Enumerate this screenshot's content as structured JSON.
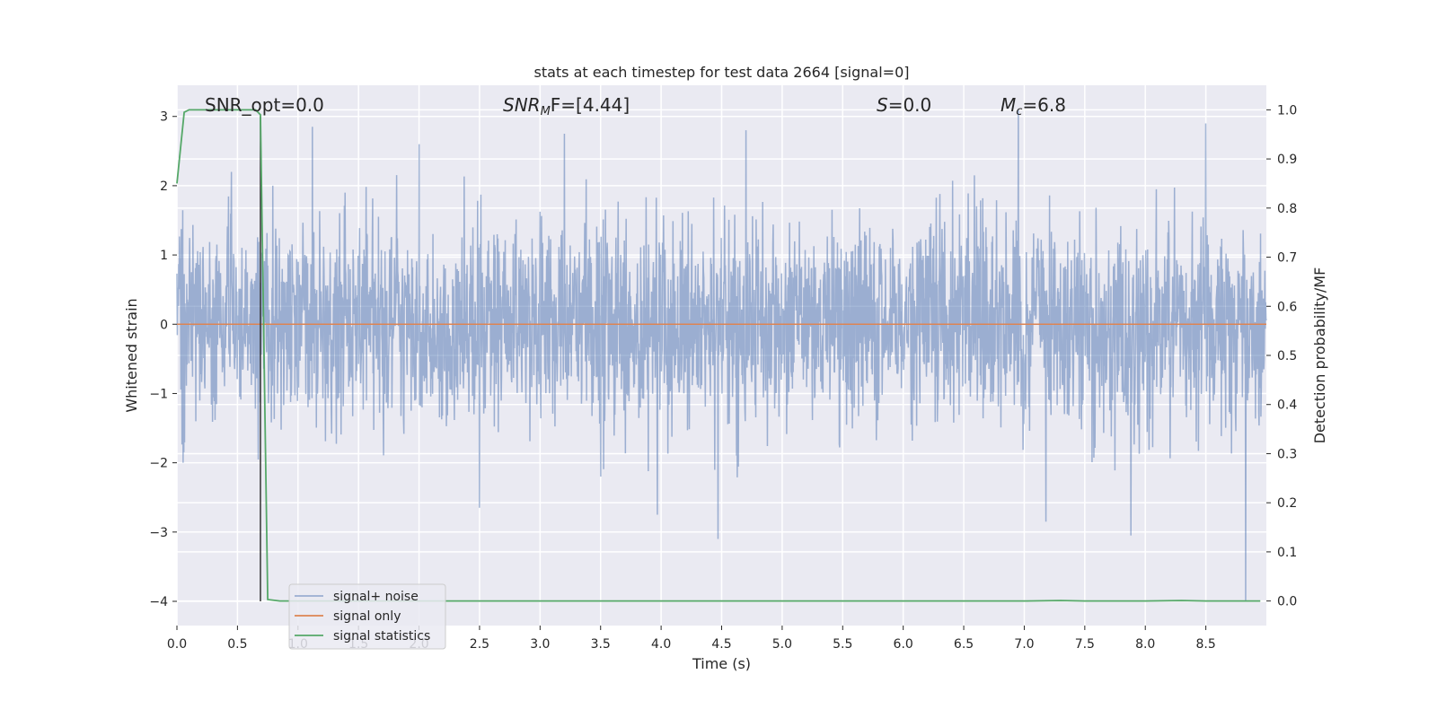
{
  "chart_data": {
    "type": "line",
    "title": "stats at each timestep for test data 2664 [signal=0]",
    "xlabel": "Time (s)",
    "ylabel": "Whitened strain",
    "y2label": "Detection probability/MF",
    "xlim": [
      0.0,
      9.0
    ],
    "ylim": [
      -4.35,
      3.45
    ],
    "y2lim": [
      -0.05,
      1.05
    ],
    "xticks": [
      0.0,
      0.5,
      1.0,
      1.5,
      2.0,
      2.5,
      3.0,
      3.5,
      4.0,
      4.5,
      5.0,
      5.5,
      6.0,
      6.5,
      7.0,
      7.5,
      8.0,
      8.5
    ],
    "xtick_labels": [
      "0.0",
      "0.5",
      "1.0",
      "1.5",
      "2.0",
      "2.5",
      "3.0",
      "3.5",
      "4.0",
      "4.5",
      "5.0",
      "5.5",
      "6.0",
      "6.5",
      "7.0",
      "7.5",
      "8.0",
      "8.5"
    ],
    "yticks": [
      -4,
      -3,
      -2,
      -1,
      0,
      1,
      2,
      3
    ],
    "ytick_labels": [
      "−4",
      "−3",
      "−2",
      "−1",
      "0",
      "1",
      "2",
      "3"
    ],
    "y2ticks": [
      0.0,
      0.1,
      0.2,
      0.3,
      0.4,
      0.5,
      0.6,
      0.7,
      0.8,
      0.9,
      1.0
    ],
    "y2tick_labels": [
      "0.0",
      "0.1",
      "0.2",
      "0.3",
      "0.4",
      "0.5",
      "0.6",
      "0.7",
      "0.8",
      "0.9",
      "1.0"
    ],
    "grid": true,
    "legend_position": "lower-left",
    "annotations": {
      "snr_opt": "SNR_opt=0.0",
      "snr_mf_name": "SNR",
      "snr_mf_sub": "M",
      "snr_mf_rest": "F=[4.44]",
      "s_name": "S",
      "s_rest": "=0.0",
      "mc_name": "M",
      "mc_sub": "c",
      "mc_rest": "=6.8"
    },
    "series": [
      {
        "name": "signal+ noise",
        "axis": "left",
        "color": "#4c72b0",
        "alpha": 0.5,
        "x_range": [
          0.0,
          9.0
        ],
        "typical_envelope": [
          -1.6,
          1.6
        ],
        "peaks": [
          [
            0.45,
            2.2
          ],
          [
            1.12,
            2.85
          ],
          [
            2.0,
            2.6
          ],
          [
            3.2,
            2.75
          ],
          [
            4.7,
            2.8
          ],
          [
            6.95,
            3.1
          ],
          [
            8.5,
            2.9
          ]
        ],
        "troughs": [
          [
            0.05,
            -2.0
          ],
          [
            2.5,
            -2.65
          ],
          [
            3.97,
            -2.75
          ],
          [
            4.47,
            -3.1
          ],
          [
            7.18,
            -2.85
          ],
          [
            7.88,
            -3.05
          ],
          [
            8.83,
            -4.0
          ]
        ]
      },
      {
        "name": "signal only",
        "axis": "left",
        "color": "#dd8452",
        "x": [
          0.0,
          9.0
        ],
        "y": [
          0.0,
          0.0
        ]
      },
      {
        "name": "signal statistics",
        "axis": "right",
        "color": "#55a868",
        "x": [
          0.0,
          0.06,
          0.1,
          0.2,
          0.3,
          0.4,
          0.5,
          0.6,
          0.65,
          0.69,
          0.75,
          0.85,
          1.0,
          2.0,
          3.0,
          4.0,
          5.0,
          6.0,
          7.0,
          7.3,
          7.5,
          8.0,
          8.3,
          8.5,
          8.95
        ],
        "y": [
          0.85,
          0.995,
          1.0,
          1.0,
          1.0,
          1.0,
          1.0,
          1.0,
          1.0,
          0.99,
          0.003,
          0.0,
          0.0,
          0.0,
          0.0,
          0.0,
          0.0,
          0.0,
          0.0,
          0.001,
          0.0,
          0.0,
          0.001,
          0.0,
          0.0
        ]
      }
    ],
    "marker_line": {
      "x": 0.69,
      "y_from": -4.0,
      "y_to": 3.0,
      "color": "#333333"
    }
  }
}
